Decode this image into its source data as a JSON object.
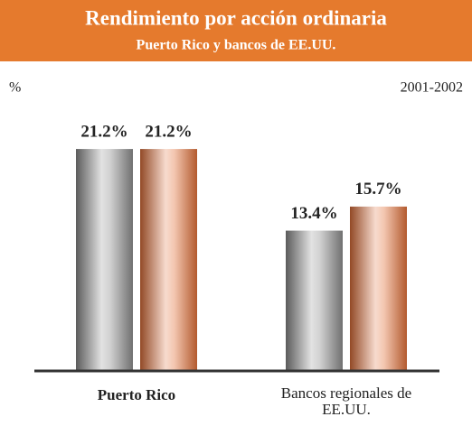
{
  "chart_data": {
    "type": "bar",
    "title": "Rendimiento por acción ordinaria",
    "subtitle": "Puerto Rico y bancos de EE.UU.",
    "ylabel": "%",
    "annotation": "2001-2002",
    "categories": [
      "Puerto Rico",
      "Bancos regionales de EE.UU."
    ],
    "series": [
      {
        "color": "#8c8c8c",
        "values": [
          21.2,
          13.4
        ],
        "value_labels": [
          "21.2%",
          "13.4%"
        ]
      },
      {
        "color": "#e0703a",
        "values": [
          21.2,
          15.7
        ],
        "value_labels": [
          "21.2%",
          "15.7%"
        ]
      }
    ],
    "ylim": [
      0,
      25
    ]
  }
}
